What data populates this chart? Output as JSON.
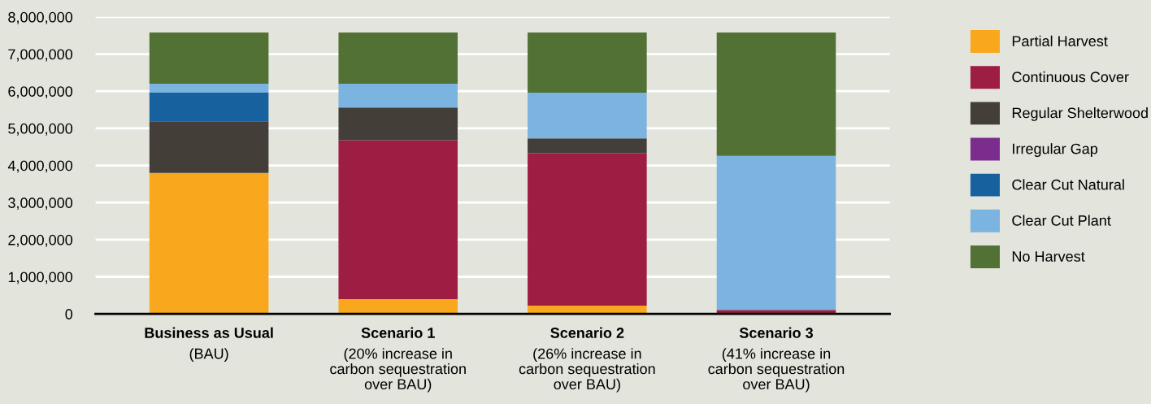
{
  "chart_data": {
    "type": "bar",
    "stacked": true,
    "categories": [
      "Business as Usual\n(BAU)",
      "Scenario 1\n(20% increase in\ncarbon sequestration\nover BAU)",
      "Scenario 2\n(26% increase in\ncarbon sequestration\nover BAU)",
      "Scenario 3\n(41% increase in\ncarbon sequestration\nover BAU)"
    ],
    "series": [
      {
        "name": "Partial Harvest",
        "color": "#f9a81e",
        "values": [
          3800000,
          400000,
          220000,
          0
        ]
      },
      {
        "name": "Continuous Cover",
        "color": "#9e1d42",
        "values": [
          0,
          4280000,
          4110000,
          110000
        ]
      },
      {
        "name": "Regular Shelterwood",
        "color": "#433f38",
        "values": [
          1390000,
          880000,
          400000,
          0
        ]
      },
      {
        "name": "Irregular Gap",
        "color": "#7b2d8e",
        "values": [
          0,
          0,
          0,
          0
        ]
      },
      {
        "name": "Clear Cut Natural",
        "color": "#17629e",
        "values": [
          770000,
          0,
          0,
          0
        ]
      },
      {
        "name": "Clear Cut Plant",
        "color": "#7bb3e1",
        "values": [
          240000,
          640000,
          1230000,
          4150000
        ]
      },
      {
        "name": "No Harvest",
        "color": "#517135",
        "values": [
          1380000,
          1380000,
          1620000,
          3320000
        ]
      }
    ],
    "ylim": [
      0,
      8000000
    ],
    "yticks": [
      {
        "value": 0,
        "label": "0"
      },
      {
        "value": 1000000,
        "label": "1,000,000"
      },
      {
        "value": 2000000,
        "label": "2,000,000"
      },
      {
        "value": 3000000,
        "label": "3,000,000"
      },
      {
        "value": 4000000,
        "label": "4,000,000"
      },
      {
        "value": 5000000,
        "label": "5,000,000"
      },
      {
        "value": 6000000,
        "label": "6,000,000"
      },
      {
        "value": 7000000,
        "label": "7,000,000"
      },
      {
        "value": 8000000,
        "label": "8,000,000"
      }
    ],
    "grid": "y",
    "legend": "right"
  }
}
